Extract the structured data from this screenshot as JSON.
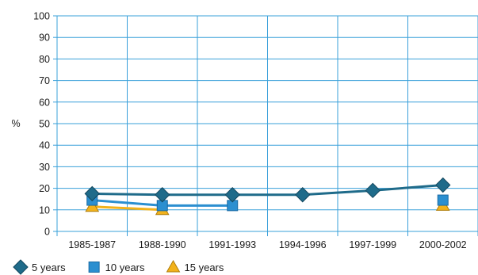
{
  "chart_data": {
    "type": "line",
    "categories": [
      "1985-1987",
      "1988-1990",
      "1991-1993",
      "1994-1996",
      "1997-1999",
      "2000-2002"
    ],
    "ylabel": "%",
    "ylim": [
      0,
      100
    ],
    "yticks": [
      0,
      10,
      20,
      30,
      40,
      50,
      60,
      70,
      80,
      90,
      100
    ],
    "grid": true,
    "legend_position": "bottom-left",
    "series": [
      {
        "name": "5 years",
        "marker": "diamond",
        "color": "#1f6b8a",
        "values": [
          17.5,
          17,
          17,
          17,
          19,
          21.5
        ]
      },
      {
        "name": "10 years",
        "marker": "square",
        "color": "#2b8fd0",
        "values": [
          14.5,
          12,
          12,
          null,
          null,
          14.5
        ]
      },
      {
        "name": "15 years",
        "marker": "triangle",
        "color": "#f2b21b",
        "values": [
          11.5,
          10,
          null,
          null,
          null,
          12
        ]
      }
    ]
  }
}
